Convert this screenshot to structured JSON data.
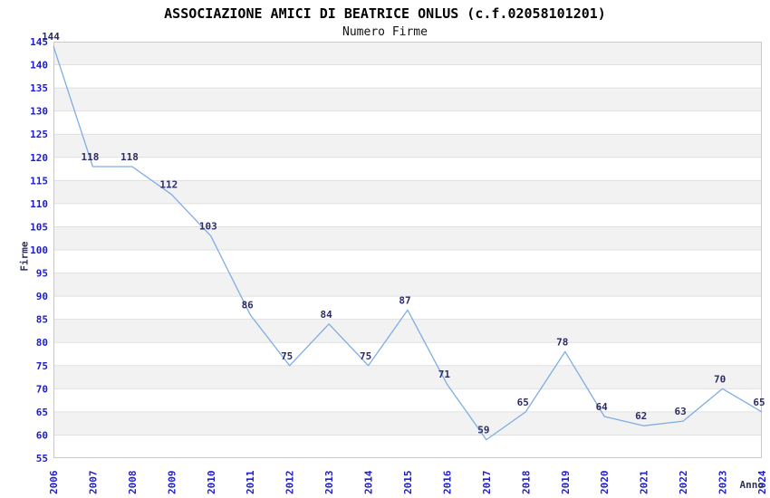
{
  "chart_data": {
    "type": "line",
    "title": "ASSOCIAZIONE AMICI DI BEATRICE ONLUS (c.f.02058101201)",
    "subtitle": "Numero Firme",
    "xlabel": "Anno",
    "ylabel": "Firme",
    "x": [
      2006,
      2007,
      2008,
      2009,
      2010,
      2011,
      2012,
      2013,
      2014,
      2015,
      2016,
      2017,
      2018,
      2019,
      2020,
      2021,
      2022,
      2023,
      2024
    ],
    "values": [
      144,
      118,
      118,
      112,
      103,
      86,
      75,
      84,
      75,
      87,
      71,
      59,
      65,
      78,
      64,
      62,
      63,
      70,
      65
    ],
    "ylim": [
      55,
      145
    ],
    "ytick_step": 5,
    "yticks": [
      145,
      140,
      135,
      130,
      125,
      120,
      115,
      110,
      105,
      100,
      95,
      90,
      85,
      80,
      75,
      70,
      65,
      60,
      55
    ],
    "grid": "horizontal-alternating-bands",
    "legend": "none",
    "data_labels": true,
    "colors": {
      "line": "#7fade4",
      "tick_label": "#1c1cd2",
      "data_label": "#2d2d66",
      "axis_title": "#30305a",
      "band": "#f2f2f2",
      "grid": "#e0e0e0",
      "border": "#c9c9c9",
      "title": "#000000",
      "background": "#ffffff"
    }
  }
}
